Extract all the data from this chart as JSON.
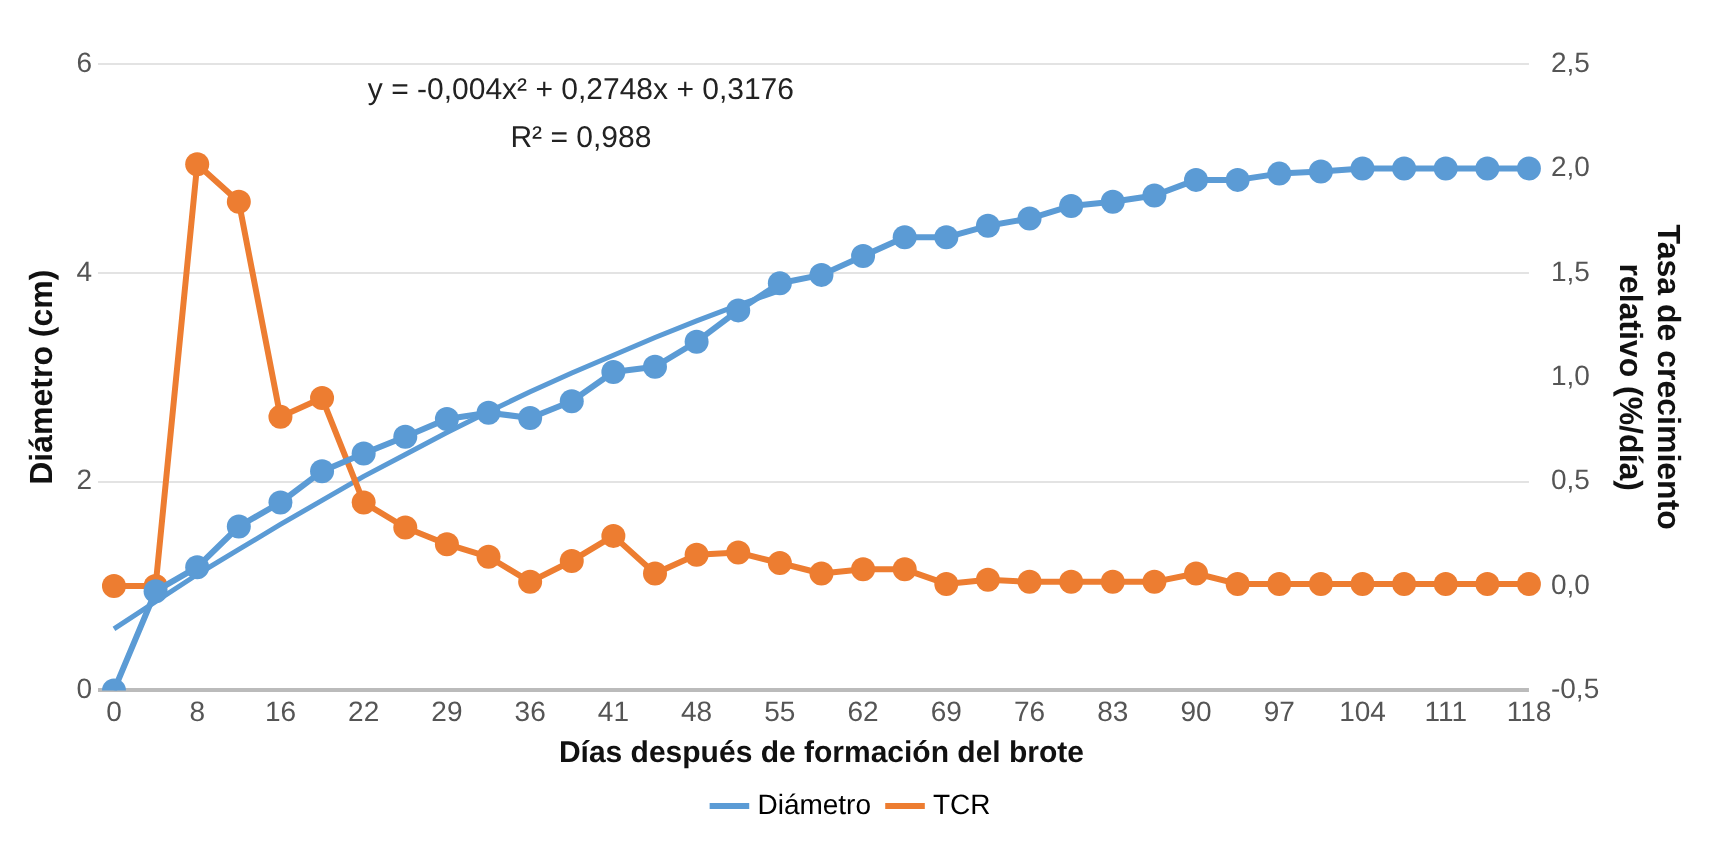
{
  "chart_data": {
    "type": "line",
    "xlabel": "Días después de formación del brote",
    "ylabel": "Diámetro (cm)",
    "y2label": "Tasa de crecimiento relativo (%/día)",
    "categories": [
      "0",
      null,
      "8",
      null,
      "16",
      null,
      "22",
      null,
      "29",
      null,
      "36",
      null,
      "41",
      null,
      "48",
      null,
      "55",
      null,
      "62",
      null,
      "69",
      null,
      "76",
      null,
      "83",
      null,
      "90",
      null,
      "97",
      null,
      "104",
      null,
      "111",
      null,
      "118"
    ],
    "series": [
      {
        "name": "Diámetro",
        "color": "#5b9bd5",
        "values": [
          0,
          0.95,
          1.18,
          1.57,
          1.8,
          2.1,
          2.27,
          2.43,
          2.6,
          2.66,
          2.61,
          2.77,
          3.05,
          3.1,
          3.34,
          3.64,
          3.9,
          3.98,
          4.16,
          4.34,
          4.34,
          4.45,
          4.52,
          4.64,
          4.68,
          4.74,
          4.89,
          4.89,
          4.95,
          4.97,
          5.0,
          5.0,
          5.0,
          5.0,
          5.0
        ]
      },
      {
        "name": "TCR",
        "color": "#ed7d31",
        "axis": "y2",
        "values": [
          0.0,
          0.0,
          2.02,
          1.84,
          0.81,
          0.9,
          0.4,
          0.28,
          0.2,
          0.14,
          0.02,
          0.12,
          0.24,
          0.06,
          0.15,
          0.16,
          0.11,
          0.06,
          0.08,
          0.08,
          0.01,
          0.03,
          0.02,
          0.02,
          0.02,
          0.02,
          0.06,
          0.01,
          0.01,
          0.01,
          0.01,
          0.01,
          0.01,
          0.01,
          0.01
        ]
      },
      {
        "type": "line",
        "color": "#5b9bd5",
        "marker": "none",
        "values": [
          0.59,
          0.85,
          1.11,
          1.35,
          1.59,
          1.82,
          2.05,
          2.26,
          2.47,
          2.67,
          2.86,
          3.04,
          3.21,
          3.38,
          3.54,
          3.69,
          3.83,
          null,
          null,
          null,
          null,
          null,
          null,
          null,
          null,
          null,
          null,
          null,
          null,
          null,
          null,
          null,
          null,
          null,
          null
        ]
      }
    ],
    "ylim": [
      0,
      6
    ],
    "yticks": [
      0,
      2,
      4,
      6
    ],
    "y2lim": [
      -0.5,
      2.5
    ],
    "y2ticks": [
      {
        "value": -0.5,
        "label": "-0,5"
      },
      {
        "value": 0,
        "label": "0,0"
      },
      {
        "value": 0.5,
        "label": "0,5"
      },
      {
        "value": 1,
        "label": "1,0"
      },
      {
        "value": 1.5,
        "label": "1,5"
      },
      {
        "value": 2,
        "label": "2,0"
      },
      {
        "value": 2.5,
        "label": "2,5"
      }
    ],
    "grid": "y",
    "legend": "bottom",
    "marker": "circle",
    "annotations": [
      "y = -0,004x² + 0,2748x + 0,3176",
      "R² = 0,988"
    ]
  }
}
